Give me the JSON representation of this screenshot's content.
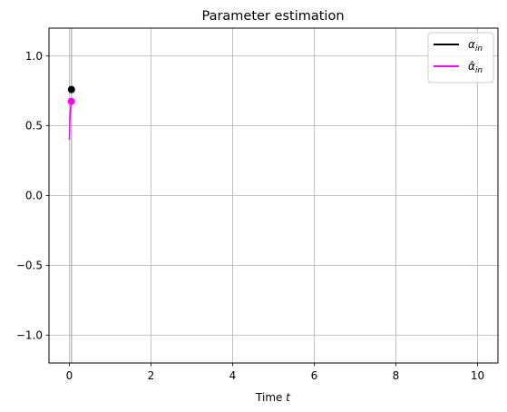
{
  "chart_data": {
    "type": "line",
    "title": "Parameter estimation",
    "xlabel_text": "Time ",
    "xlabel_var": "t",
    "ylabel": "",
    "xlim": [
      -0.5,
      10.5
    ],
    "ylim": [
      -1.2,
      1.2
    ],
    "xticks": [
      0,
      2,
      4,
      6,
      8,
      10
    ],
    "xtick_labels": [
      "0",
      "2",
      "4",
      "6",
      "8",
      "10"
    ],
    "yticks": [
      1.0,
      0.5,
      0.0,
      -0.5,
      -1.0
    ],
    "ytick_labels": [
      "1.0",
      "0.5",
      "0.0",
      "−0.5",
      "−1.0"
    ],
    "grid": true,
    "current_time": 0.05,
    "legend_position": "top-right",
    "series": [
      {
        "name_base": "α",
        "name_hat": "",
        "name_sub": "in",
        "color": "#000000",
        "x": [
          0.05
        ],
        "y": [
          0.76
        ],
        "current": {
          "x": 0.05,
          "y": 0.76
        }
      },
      {
        "name_base": "α",
        "name_hat": "̂",
        "name_sub": "in",
        "color": "#ff00ff",
        "x": [
          0.0,
          0.01,
          0.02,
          0.03,
          0.04,
          0.05
        ],
        "y": [
          0.4,
          0.52,
          0.59,
          0.63,
          0.66,
          0.675
        ],
        "current": {
          "x": 0.05,
          "y": 0.675
        }
      }
    ]
  }
}
